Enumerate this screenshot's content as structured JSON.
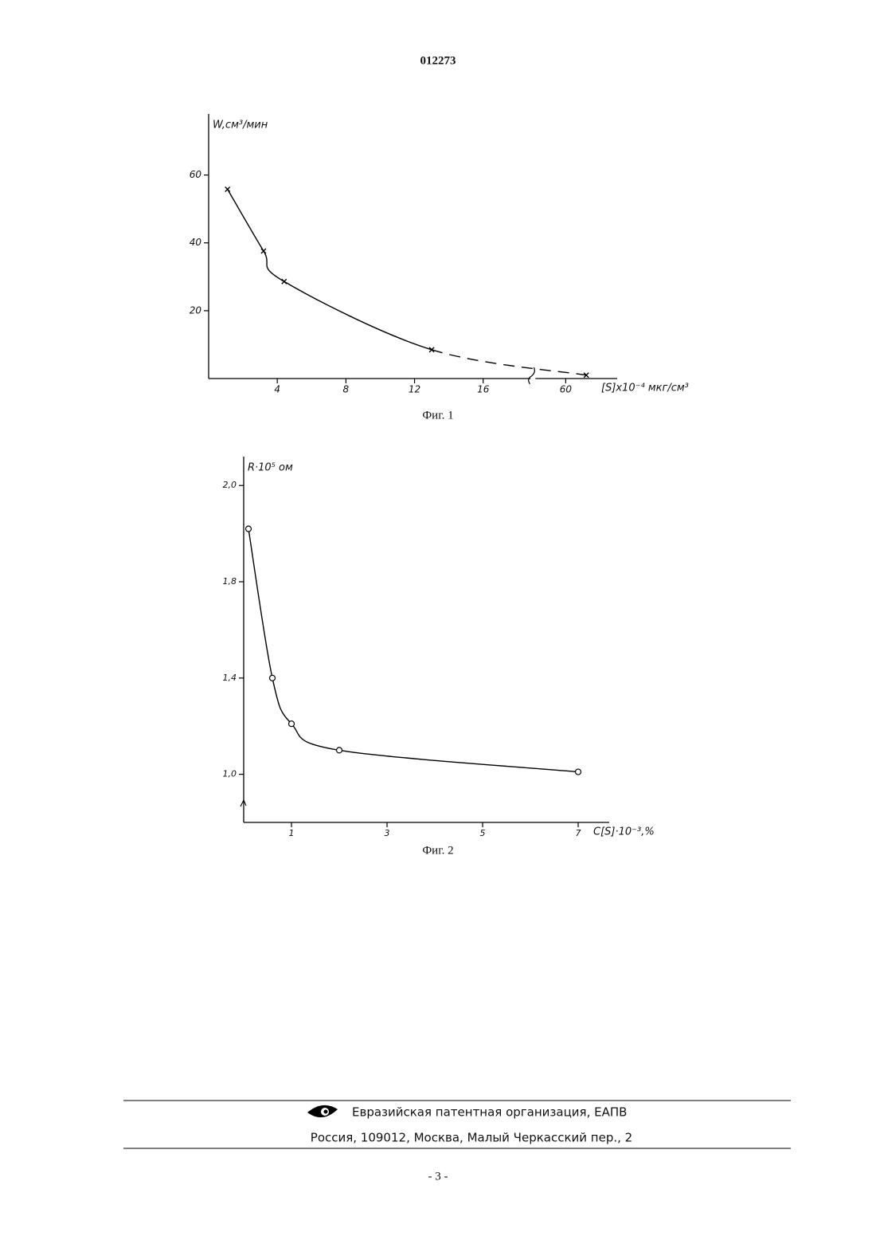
{
  "header": {
    "number": "012273"
  },
  "chart_data": [
    {
      "type": "line",
      "caption": "Фиг. 1",
      "ylabel": "W,см³/мин",
      "xlabel": "[S]x10⁻⁴ мкг/см³",
      "x": [
        1.1,
        3.2,
        4.4,
        13,
        61.2
      ],
      "values": [
        55.8,
        37.6,
        28.6,
        8.5,
        1
      ],
      "marker": "x",
      "color": "#000000",
      "line_styles": [
        "solid",
        "solid",
        "solid",
        "dashed"
      ],
      "xlim": [
        0,
        63
      ],
      "xbreak": [
        18,
        59
      ],
      "xticks": [
        4,
        8,
        12,
        16,
        60
      ],
      "ylim": [
        0,
        78
      ],
      "yticks": [
        20,
        40,
        60
      ]
    },
    {
      "type": "line",
      "caption": "Фиг. 2",
      "ylabel": "R·10⁵ ом",
      "xlabel": "C[S]·10⁻³,%",
      "x": [
        0.1,
        0.6,
        1,
        2,
        7
      ],
      "values": [
        1.91,
        1.4,
        1.21,
        1.1,
        1.01
      ],
      "marker": "o",
      "color": "#000000",
      "line_styles": [
        "solid",
        "solid",
        "solid",
        "solid"
      ],
      "xlim": [
        0,
        7.65
      ],
      "xticks": [
        1,
        3,
        5,
        7
      ],
      "ylim": [
        0.8,
        2.06
      ],
      "y_scale": "tick-spaced",
      "ybreak": true,
      "yticks": [
        {
          "value": 1.0,
          "label": "1,0"
        },
        {
          "value": 1.4,
          "label": "1,4"
        },
        {
          "value": 1.8,
          "label": "1,8"
        },
        {
          "value": 2.0,
          "label": "2,0"
        }
      ]
    }
  ],
  "footer": {
    "organization": "Евразийская патентная организация, ЕАПВ",
    "address": "Россия, 109012, Москва, Малый Черкасский пер., 2",
    "page": "- 3 -"
  }
}
